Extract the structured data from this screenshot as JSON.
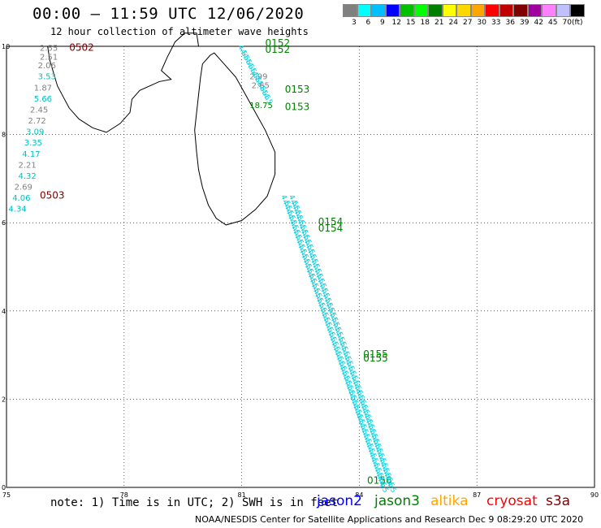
{
  "header": {
    "title": "00:00 – 11:59 UTC 12/06/2020",
    "subtitle": "12 hour collection of altimeter wave heights"
  },
  "colorbar": {
    "colors": [
      "#808080",
      "#00ffff",
      "#00bfff",
      "#0000ff",
      "#00c000",
      "#00ff00",
      "#008000",
      "#ffff00",
      "#ffd700",
      "#ffa500",
      "#ff0000",
      "#c00000",
      "#800000",
      "#a000a0",
      "#ff80ff",
      "#c0c0ff",
      "#000000"
    ],
    "labels": [
      "3",
      "6",
      "9",
      "12",
      "15",
      "18",
      "21",
      "24",
      "27",
      "30",
      "33",
      "36",
      "39",
      "42",
      "45",
      "70",
      "(ft)"
    ]
  },
  "map": {
    "lon_ticks": [
      "75",
      "78",
      "81",
      "84",
      "87",
      "90"
    ],
    "lat_ticks": [
      "0",
      "2",
      "4",
      "6",
      "8",
      "10"
    ],
    "track_labels": [
      {
        "text": "0502",
        "color": "#800000",
        "lon": 76.6,
        "lat": 9.9
      },
      {
        "text": "0503",
        "color": "#800000",
        "lon": 75.85,
        "lat": 6.55
      },
      {
        "text": "0152",
        "color": "#008000",
        "lon": 81.6,
        "lat": 10.0
      },
      {
        "text": "0152",
        "color": "#008000",
        "lon": 81.6,
        "lat": 9.85
      },
      {
        "text": "0153",
        "color": "#008000",
        "lon": 82.1,
        "lat": 8.95
      },
      {
        "text": "0153",
        "color": "#008000",
        "lon": 82.1,
        "lat": 8.55
      },
      {
        "text": "0154",
        "color": "#008000",
        "lon": 82.95,
        "lat": 5.95
      },
      {
        "text": "0154",
        "color": "#008000",
        "lon": 82.95,
        "lat": 5.8
      },
      {
        "text": "0155",
        "color": "#008000",
        "lon": 84.1,
        "lat": 2.95
      },
      {
        "text": "0155",
        "color": "#008000",
        "lon": 84.1,
        "lat": 2.85
      },
      {
        "text": "0156",
        "color": "#008000",
        "lon": 84.2,
        "lat": 0.08
      }
    ],
    "west_values": [
      {
        "text": "2.55",
        "color": "#808080",
        "lon": 75.85,
        "lat": 9.9
      },
      {
        "text": "2.51",
        "color": "#808080",
        "lon": 75.85,
        "lat": 9.7
      },
      {
        "text": "2.06",
        "color": "#808080",
        "lon": 75.8,
        "lat": 9.5
      },
      {
        "text": "3.53",
        "color": "#00bfbf",
        "lon": 75.8,
        "lat": 9.25
      },
      {
        "text": "1.87",
        "color": "#808080",
        "lon": 75.7,
        "lat": 9.0
      },
      {
        "text": "5.66",
        "color": "#00bfbf",
        "lon": 75.7,
        "lat": 8.75
      },
      {
        "text": "2.45",
        "color": "#808080",
        "lon": 75.6,
        "lat": 8.5
      },
      {
        "text": "2.72",
        "color": "#808080",
        "lon": 75.55,
        "lat": 8.25
      },
      {
        "text": "3.09",
        "color": "#00bfbf",
        "lon": 75.5,
        "lat": 8.0
      },
      {
        "text": "3.35",
        "color": "#00bfbf",
        "lon": 75.45,
        "lat": 7.75
      },
      {
        "text": "4.17",
        "color": "#00bfbf",
        "lon": 75.4,
        "lat": 7.5
      },
      {
        "text": "2.21",
        "color": "#808080",
        "lon": 75.3,
        "lat": 7.25
      },
      {
        "text": "4.32",
        "color": "#00bfbf",
        "lon": 75.3,
        "lat": 7.0
      },
      {
        "text": "2.69",
        "color": "#808080",
        "lon": 75.2,
        "lat": 6.75
      },
      {
        "text": "4.06",
        "color": "#00bfbf",
        "lon": 75.15,
        "lat": 6.5
      },
      {
        "text": "4.34",
        "color": "#00bfbf",
        "lon": 75.05,
        "lat": 6.25
      }
    ],
    "north_values": [
      {
        "text": "2.99",
        "color": "#808080",
        "lon": 81.2,
        "lat": 9.25
      },
      {
        "text": "2.65",
        "color": "#808080",
        "lon": 81.25,
        "lat": 9.05
      },
      {
        "text": "18.75",
        "color": "#008000",
        "lon": 81.2,
        "lat": 8.6
      }
    ]
  },
  "footer": {
    "note": "note: 1) Time is in UTC; 2) SWH is in feet",
    "satellites": [
      {
        "name": "jason2",
        "color": "#0000ff"
      },
      {
        "name": "jason3",
        "color": "#008000"
      },
      {
        "name": "altika",
        "color": "#ffa500"
      },
      {
        "name": "cryosat",
        "color": "#ff0000"
      },
      {
        "name": "s3a",
        "color": "#800000"
      }
    ],
    "credit": "NOAA/NESDIS Center for Satellite Applications and Research    Dec  9 08:29:20 UTC 2020"
  }
}
